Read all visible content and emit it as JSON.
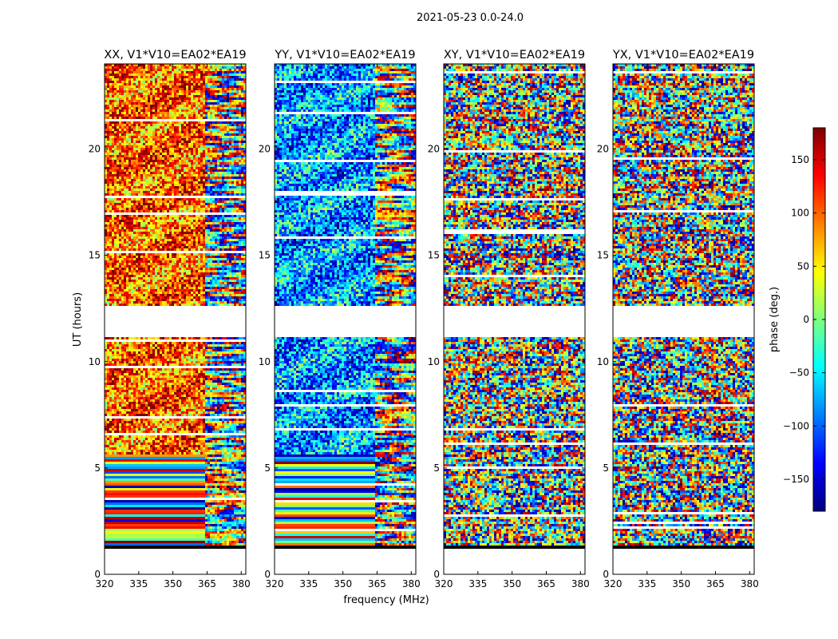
{
  "title": "2021-05-23 0.0-24.0",
  "colors": {
    "frame": "#000000",
    "background": "#ffffff",
    "colormap": [
      "#00007f",
      "#0000ff",
      "#007fff",
      "#00ffff",
      "#7fff7f",
      "#ffff00",
      "#ff7f00",
      "#ff0000",
      "#7f0000"
    ]
  },
  "chart_data": {
    "type": "heatmap",
    "title": "2021-05-23 0.0-24.0",
    "xlabel": "frequency (MHz)",
    "ylabel": "UT (hours)",
    "xlim": [
      320,
      382
    ],
    "ylim": [
      0,
      24
    ],
    "x_ticks": [
      320,
      335,
      350,
      365,
      380
    ],
    "y_ticks": [
      0,
      5,
      10,
      15,
      20
    ],
    "data_gaps_ut": [
      [
        0.0,
        1.2
      ],
      [
        11.1,
        12.6
      ]
    ],
    "colorbar": {
      "label": "phase (deg.)",
      "range": [
        -180,
        180
      ],
      "ticks": [
        150,
        100,
        50,
        0,
        -50,
        -100,
        -150
      ],
      "tick_labels": [
        "150",
        "100",
        "50",
        "0",
        "−50",
        "−100",
        "−150"
      ]
    },
    "panels": [
      {
        "title": "XX, V1*V10=EA02*EA19",
        "polarization": "XX"
      },
      {
        "title": "YY, V1*V10=EA02*EA19",
        "polarization": "YY"
      },
      {
        "title": "XY, V1*V10=EA02*EA19",
        "polarization": "XY"
      },
      {
        "title": "YX, V1*V10=EA02*EA19",
        "polarization": "YX"
      }
    ]
  }
}
